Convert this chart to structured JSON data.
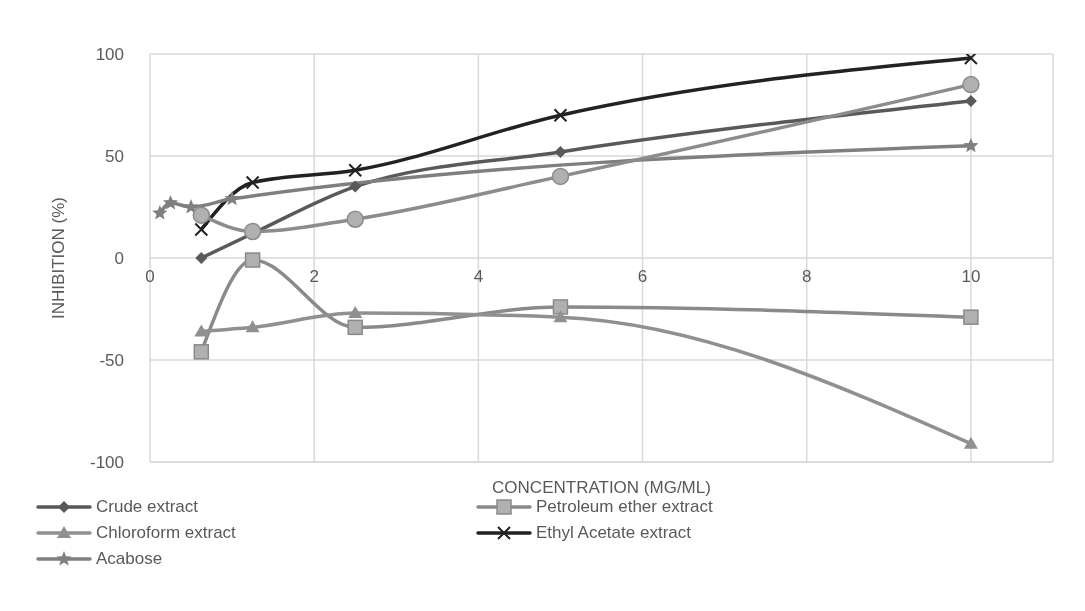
{
  "chart_data": {
    "type": "line",
    "xlabel": "CONCENTRATION (MG/ML)",
    "ylabel": "INHIBITION (%)",
    "xlim": [
      0,
      11
    ],
    "xticks": [
      0,
      2,
      4,
      6,
      8,
      10
    ],
    "ylim": [
      -100,
      100
    ],
    "yticks": [
      -100,
      -50,
      0,
      50,
      100
    ],
    "grid": true,
    "legend": "bottom",
    "line_style": "solid",
    "series": [
      {
        "name": "Crude extract",
        "color": "#595959",
        "marker": "diamond",
        "x": [
          0.625,
          1.25,
          2.5,
          5,
          10
        ],
        "values": [
          0,
          12,
          35,
          52,
          77
        ]
      },
      {
        "name": "Petroleum ether extract",
        "color": "#8a8a8a",
        "marker": "square",
        "x": [
          0.625,
          1.25,
          2.5,
          5,
          10
        ],
        "values": [
          -46,
          -1,
          -34,
          -24,
          -29
        ]
      },
      {
        "name": "Chloroform extract",
        "color": "#909090",
        "marker": "triangle",
        "x": [
          0.625,
          1.25,
          2.5,
          5,
          10
        ],
        "values": [
          -36,
          -34,
          -27,
          -29,
          -91
        ]
      },
      {
        "name": "Ethyl Acetate extract",
        "color": "#222222",
        "marker": "cross",
        "x": [
          0.625,
          1.25,
          2.5,
          5,
          10
        ],
        "values": [
          14,
          37,
          43,
          70,
          98
        ]
      },
      {
        "name": "Acabose",
        "color": "#7f7f7f",
        "marker": "star",
        "x": [
          0.12,
          0.25,
          0.5,
          1,
          10
        ],
        "values": [
          22,
          27,
          25,
          29,
          55
        ]
      },
      {
        "color": "#8c8c8c",
        "marker": "circle",
        "x": [
          0.625,
          1.25,
          2.5,
          5,
          10
        ],
        "values": [
          21,
          13,
          19,
          40,
          85
        ]
      }
    ]
  }
}
